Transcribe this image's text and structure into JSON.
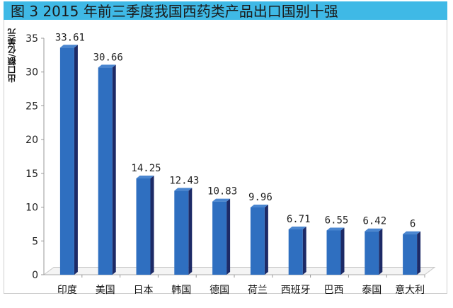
{
  "chart_data": {
    "type": "bar",
    "title": "图 3   2015 年前三季度我国西药类产品出口国别十强",
    "ylabel": "出口额/亿美元",
    "xlabel": "",
    "categories": [
      "印度",
      "美国",
      "日本",
      "韩国",
      "德国",
      "荷兰",
      "西班牙",
      "巴西",
      "泰国",
      "意大利"
    ],
    "values": [
      33.61,
      30.66,
      14.25,
      12.43,
      10.83,
      9.96,
      6.71,
      6.55,
      6.42,
      6
    ],
    "data_labels": [
      "33.61",
      "30.66",
      "14.25",
      "12.43",
      "10.83",
      "9.96",
      "6.71",
      "6.55",
      "6.42",
      "6"
    ],
    "ylim": [
      0,
      35
    ],
    "yticks": [
      0,
      5,
      10,
      15,
      20,
      25,
      30,
      35
    ],
    "grid": false,
    "style": "3d-column",
    "colors": {
      "bar_front": "#2f6fc0",
      "bar_side": "#1d2a66",
      "title_bar": "#3fb9e6"
    }
  }
}
